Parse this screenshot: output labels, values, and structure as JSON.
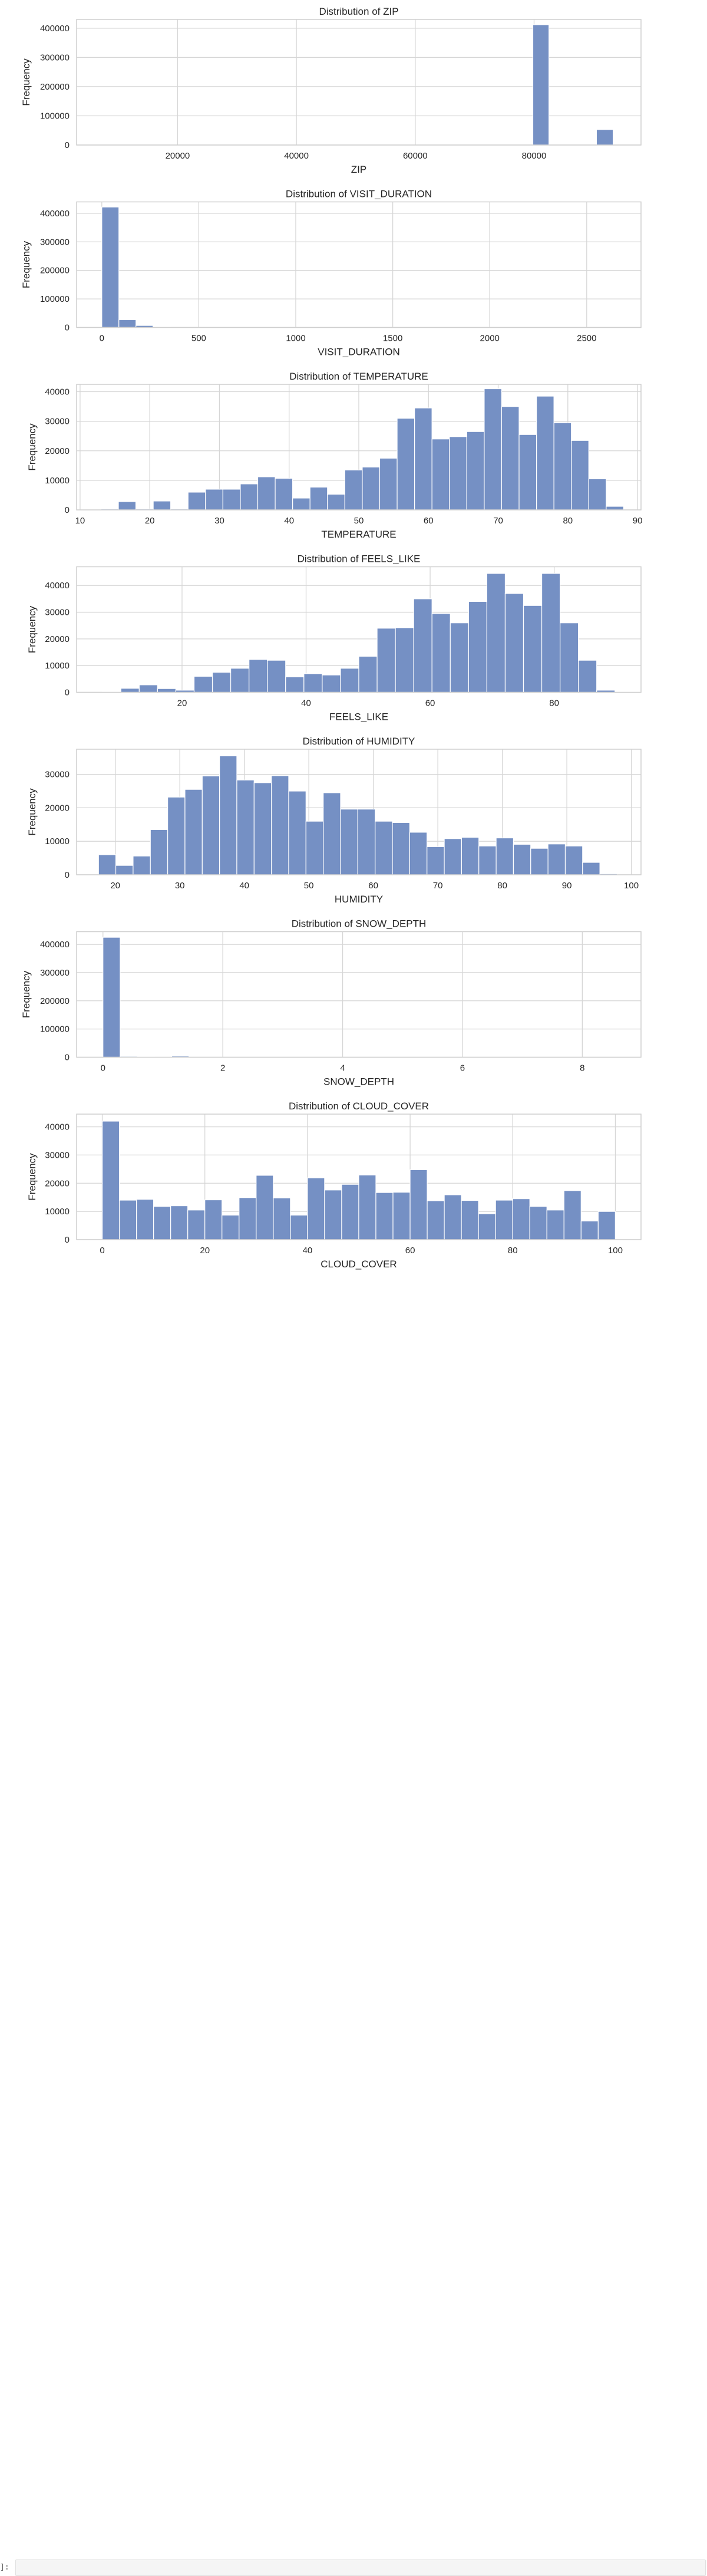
{
  "colors": {
    "bar": "#7590c4",
    "bar_edge": "#ffffff",
    "grid": "#d6d6d6",
    "frame": "#cfcfcf",
    "text": "#262626"
  },
  "cell": {
    "prompt": "]:"
  },
  "chart_data": [
    {
      "type": "bar",
      "title": "Distribution of ZIP",
      "xlabel": "ZIP",
      "ylabel": "Frequency",
      "xlim": [
        3000,
        98000
      ],
      "ylim": [
        0,
        430000
      ],
      "xticks": [
        20000,
        40000,
        60000,
        80000
      ],
      "xtick_labels": [
        "20000",
        "40000",
        "60000",
        "80000"
      ],
      "yticks": [
        0,
        100000,
        200000,
        300000,
        400000
      ],
      "ytick_labels": [
        "0",
        "100000",
        "200000",
        "300000",
        "400000"
      ],
      "bins": [
        {
          "x0": 79800,
          "x1": 82500,
          "value": 412000
        },
        {
          "x0": 90500,
          "x1": 93300,
          "value": 53000
        }
      ]
    },
    {
      "type": "bar",
      "title": "Distribution of VISIT_DURATION",
      "xlabel": "VISIT_DURATION",
      "ylabel": "Frequency",
      "xlim": [
        -130,
        2780
      ],
      "ylim": [
        0,
        440000
      ],
      "xticks": [
        0,
        500,
        1000,
        1500,
        2000,
        2500
      ],
      "xtick_labels": [
        "0",
        "500",
        "1000",
        "1500",
        "2000",
        "2500"
      ],
      "yticks": [
        0,
        100000,
        200000,
        300000,
        400000
      ],
      "ytick_labels": [
        "0",
        "100000",
        "200000",
        "300000",
        "400000"
      ],
      "bins": [
        {
          "x0": 0,
          "x1": 88,
          "value": 422000
        },
        {
          "x0": 88,
          "x1": 176,
          "value": 27000
        },
        {
          "x0": 176,
          "x1": 264,
          "value": 7000
        },
        {
          "x0": 264,
          "x1": 352,
          "value": 1500
        }
      ]
    },
    {
      "type": "bar",
      "title": "Distribution of TEMPERATURE",
      "xlabel": "TEMPERATURE",
      "ylabel": "Frequency",
      "xlim": [
        9.5,
        90.5
      ],
      "ylim": [
        0,
        42500
      ],
      "xticks": [
        10,
        20,
        30,
        40,
        50,
        60,
        70,
        80,
        90
      ],
      "xtick_labels": [
        "10",
        "20",
        "30",
        "40",
        "50",
        "60",
        "70",
        "80",
        "90"
      ],
      "yticks": [
        0,
        10000,
        20000,
        30000,
        40000
      ],
      "ytick_labels": [
        "0",
        "10000",
        "20000",
        "30000",
        "40000"
      ],
      "bin_start": 13.0,
      "bin_width": 2.5,
      "values": [
        300,
        2800,
        300,
        3000,
        300,
        6000,
        7000,
        7000,
        8800,
        11200,
        10700,
        4000,
        7700,
        5300,
        13500,
        14500,
        17500,
        31000,
        34500,
        24000,
        24800,
        26500,
        41000,
        35000,
        25500,
        38500,
        29500,
        23500,
        10500,
        1200
      ]
    },
    {
      "type": "bar",
      "title": "Distribution of FEELS_LIKE",
      "xlabel": "FEELS_LIKE",
      "ylabel": "Frequency",
      "xlim": [
        3,
        94
      ],
      "ylim": [
        0,
        47000
      ],
      "xticks": [
        20,
        40,
        60,
        80
      ],
      "xtick_labels": [
        "20",
        "40",
        "60",
        "80"
      ],
      "yticks": [
        0,
        10000,
        20000,
        30000,
        40000
      ],
      "ytick_labels": [
        "0",
        "10000",
        "20000",
        "30000",
        "40000"
      ],
      "bin_start": 7.2,
      "bin_width": 2.95,
      "values": [
        100,
        1500,
        2800,
        1400,
        800,
        6000,
        7500,
        9000,
        12300,
        12000,
        5800,
        7000,
        6500,
        9000,
        13500,
        24000,
        24200,
        35000,
        29500,
        26000,
        34000,
        44500,
        37000,
        32500,
        44500,
        26000,
        12000,
        800,
        100,
        100
      ]
    },
    {
      "type": "bar",
      "title": "Distribution of HUMIDITY",
      "xlabel": "HUMIDITY",
      "ylabel": "Frequency",
      "xlim": [
        14,
        101.5
      ],
      "ylim": [
        0,
        37500
      ],
      "xticks": [
        20,
        30,
        40,
        50,
        60,
        70,
        80,
        90,
        100
      ],
      "xtick_labels": [
        "20",
        "30",
        "40",
        "50",
        "60",
        "70",
        "80",
        "90",
        "100"
      ],
      "yticks": [
        0,
        10000,
        20000,
        30000
      ],
      "ytick_labels": [
        "0",
        "10000",
        "20000",
        "30000"
      ],
      "bin_start": 17.4,
      "bin_width": 2.68,
      "values": [
        6000,
        2800,
        5600,
        13500,
        23200,
        25500,
        29500,
        35500,
        28300,
        27500,
        29600,
        25000,
        16000,
        24500,
        19600,
        19600,
        16000,
        15600,
        12700,
        8400,
        10800,
        11200,
        8600,
        11000,
        9100,
        7900,
        9200,
        8600,
        3700,
        300
      ]
    },
    {
      "type": "bar",
      "title": "Distribution of SNOW_DEPTH",
      "xlabel": "SNOW_DEPTH",
      "ylabel": "Frequency",
      "xlim": [
        -0.44,
        8.98
      ],
      "ylim": [
        0,
        445000
      ],
      "xticks": [
        0,
        2,
        4,
        6,
        8
      ],
      "xtick_labels": [
        "0",
        "2",
        "4",
        "6",
        "8"
      ],
      "yticks": [
        0,
        100000,
        200000,
        300000,
        400000
      ],
      "ytick_labels": [
        "0",
        "100000",
        "200000",
        "300000",
        "400000"
      ],
      "bin_start": 0,
      "bin_width": 0.287,
      "values": [
        425000,
        3000,
        1000,
        500,
        4000
      ]
    },
    {
      "type": "bar",
      "title": "Distribution of CLOUD_COVER",
      "xlabel": "CLOUD_COVER",
      "ylabel": "Frequency",
      "xlim": [
        -5,
        105
      ],
      "ylim": [
        0,
        44500
      ],
      "xticks": [
        0,
        20,
        40,
        60,
        80,
        100
      ],
      "xtick_labels": [
        "0",
        "20",
        "40",
        "60",
        "80",
        "100"
      ],
      "yticks": [
        0,
        10000,
        20000,
        30000,
        40000
      ],
      "ytick_labels": [
        "0",
        "10000",
        "20000",
        "30000",
        "40000"
      ],
      "bin_start": 0,
      "bin_width": 3.333,
      "values": [
        42000,
        14000,
        14300,
        11800,
        12000,
        10500,
        14100,
        8700,
        14900,
        22800,
        14800,
        8700,
        21900,
        17600,
        19600,
        22900,
        16700,
        16800,
        24800,
        13800,
        15900,
        13900,
        9200,
        14000,
        14500,
        11800,
        10500,
        17400,
        6600,
        10000
      ]
    }
  ]
}
